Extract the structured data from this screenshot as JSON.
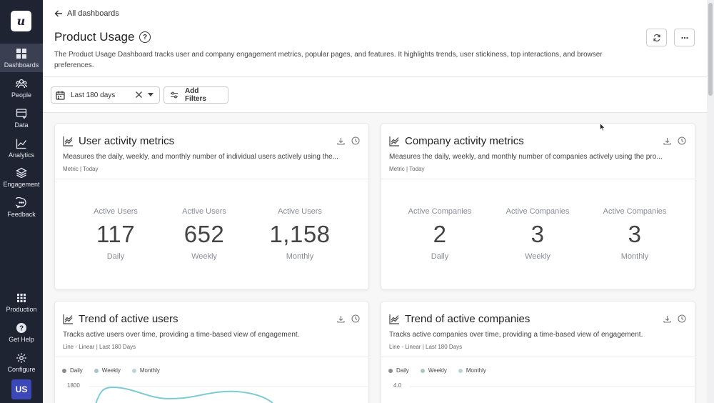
{
  "sidebar": {
    "logo": "u",
    "items": [
      {
        "label": "Dashboards"
      },
      {
        "label": "People"
      },
      {
        "label": "Data"
      },
      {
        "label": "Analytics"
      },
      {
        "label": "Engagement"
      },
      {
        "label": "Feedback"
      }
    ],
    "bottom": [
      {
        "label": "Production"
      },
      {
        "label": "Get Help"
      },
      {
        "label": "Configure"
      }
    ],
    "avatar": "US"
  },
  "header": {
    "back_label": "All dashboards",
    "title": "Product Usage",
    "help": "?",
    "description": "The Product Usage Dashboard tracks user and company engagement metrics, popular pages, and features. It highlights trends, user stickiness, top interactions, and browser preferences."
  },
  "filters": {
    "date_range": "Last 180 days",
    "add_filters": "Add Filters"
  },
  "cards": {
    "user_activity": {
      "title": "User activity metrics",
      "description": "Measures the daily, weekly, and monthly number of individual users actively using the...",
      "meta": "Metric | Today",
      "metrics": [
        {
          "label": "Active Users",
          "value": "117",
          "period": "Daily"
        },
        {
          "label": "Active Users",
          "value": "652",
          "period": "Weekly"
        },
        {
          "label": "Active Users",
          "value": "1,158",
          "period": "Monthly"
        }
      ]
    },
    "company_activity": {
      "title": "Company activity metrics",
      "description": "Measures the daily, weekly, and monthly number of companies actively using the pro...",
      "meta": "Metric | Today",
      "metrics": [
        {
          "label": "Active Companies",
          "value": "2",
          "period": "Daily"
        },
        {
          "label": "Active Companies",
          "value": "3",
          "period": "Weekly"
        },
        {
          "label": "Active Companies",
          "value": "3",
          "period": "Monthly"
        }
      ]
    },
    "trend_users": {
      "title": "Trend of active users",
      "description": "Tracks active users over time, providing a time-based view of engagement.",
      "meta": "Line - Linear | Last 180 Days",
      "legend": [
        "Daily",
        "Weekly",
        "Monthly"
      ],
      "ytick": "1800"
    },
    "trend_companies": {
      "title": "Trend of active companies",
      "description": "Tracks active companies over time, providing a time-based view of engagement.",
      "meta": "Line - Linear | Last 180 Days",
      "legend": [
        "Daily",
        "Weekly",
        "Monthly"
      ],
      "ytick": "4.0"
    }
  },
  "colors": {
    "sidebar_bg": "#1f2433",
    "sidebar_active": "#3a4052",
    "avatar_bg": "#3d48b8",
    "legend_daily": "#8a8c93",
    "legend_weekly": "#a9c3c7",
    "legend_monthly": "#bcd3d6",
    "line_monthly": "#7fcbd3"
  },
  "icons": {
    "back": "arrow-left-icon",
    "refresh": "refresh-icon",
    "more": "more-horizontal-icon",
    "calendar": "calendar-icon",
    "clear": "close-icon",
    "filters": "sliders-icon",
    "download": "download-icon",
    "history": "clock-icon",
    "chart": "line-chart-icon"
  }
}
